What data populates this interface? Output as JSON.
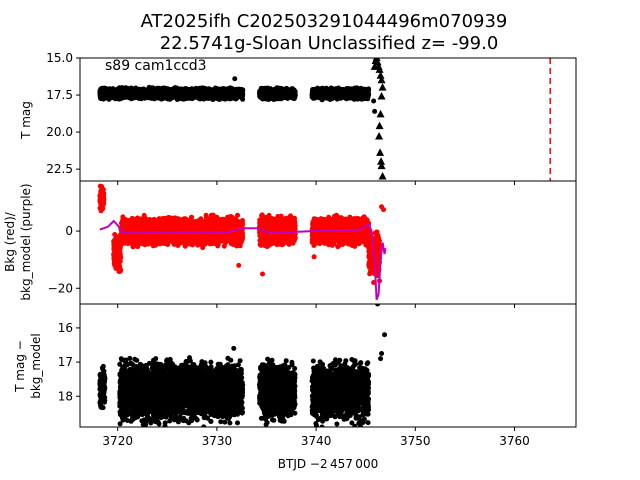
{
  "figure": {
    "title_line1": "AT2025ifh  C202503291044496m070939",
    "title_line2": "22.5741g-Sloan Unclassified z= -99.0",
    "annotation": "s89 cam1ccd3"
  },
  "chart_data": [
    {
      "type": "scatter",
      "panel": "top",
      "ylabel": "T mag",
      "xlim": [
        3716.2,
        3766.2
      ],
      "ylim": [
        23.3,
        15.0
      ],
      "y_inverted": true,
      "yticks": [
        15.0,
        17.5,
        20.0,
        22.5
      ],
      "ytick_labels": [
        "15.0",
        "17.5",
        "20.0",
        "22.5"
      ],
      "grid": false,
      "series": [
        {
          "marker": "circle",
          "color": "#000000",
          "segments": [
            {
              "x_start": 3718.2,
              "x_end": 3732.6,
              "y_center": 17.4,
              "y_spread": 0.45
            },
            {
              "x_start": 3734.3,
              "x_end": 3737.9,
              "y_center": 17.4,
              "y_spread": 0.45
            },
            {
              "x_start": 3739.6,
              "x_end": 3745.3,
              "y_center": 17.4,
              "y_spread": 0.45
            }
          ],
          "points": [
            {
              "x": 3731.8,
              "y": 16.4
            },
            {
              "x": 3745.8,
              "y": 17.9
            },
            {
              "x": 3745.9,
              "y": 18.6
            }
          ]
        },
        {
          "marker": "triangle",
          "color": "#000000",
          "points": [
            {
              "x": 3745.9,
              "y": 15.6
            },
            {
              "x": 3746.0,
              "y": 15.2
            },
            {
              "x": 3746.1,
              "y": 15.0
            },
            {
              "x": 3746.2,
              "y": 15.3
            },
            {
              "x": 3746.3,
              "y": 15.6
            },
            {
              "x": 3746.4,
              "y": 15.8
            },
            {
              "x": 3746.5,
              "y": 16.2
            },
            {
              "x": 3746.6,
              "y": 16.5
            },
            {
              "x": 3746.7,
              "y": 17.0
            },
            {
              "x": 3746.6,
              "y": 17.6
            },
            {
              "x": 3746.5,
              "y": 18.8
            },
            {
              "x": 3746.4,
              "y": 19.6
            },
            {
              "x": 3746.35,
              "y": 20.3
            },
            {
              "x": 3746.45,
              "y": 21.4
            },
            {
              "x": 3746.55,
              "y": 22.0
            },
            {
              "x": 3746.6,
              "y": 22.3
            },
            {
              "x": 3746.7,
              "y": 23.0
            }
          ]
        }
      ],
      "vline": {
        "x": 3763.6,
        "color": "#ff0000",
        "style": "dashed"
      }
    },
    {
      "type": "scatter",
      "panel": "middle",
      "ylabel_line1": "Bkg (red)/",
      "ylabel_line2": "bkg_model (purple)",
      "xlim": [
        3716.2,
        3766.2
      ],
      "ylim": [
        -25.5,
        17.5
      ],
      "yticks": [
        0,
        -20
      ],
      "ytick_labels": [
        "0",
        "−20"
      ],
      "grid": false,
      "series": [
        {
          "name": "Bkg",
          "color": "#ff0000",
          "segments": [
            {
              "x_start": 3718.2,
              "x_end": 3718.6,
              "y_center": 11.5,
              "y_spread": 5.0
            },
            {
              "x_start": 3719.6,
              "x_end": 3720.3,
              "y_center": -8.0,
              "y_spread": 8.0
            },
            {
              "x_start": 3720.3,
              "x_end": 3732.6,
              "y_center": 0.0,
              "y_spread": 6.0
            },
            {
              "x_start": 3734.3,
              "x_end": 3737.9,
              "y_center": 0.0,
              "y_spread": 6.0
            },
            {
              "x_start": 3739.6,
              "x_end": 3745.3,
              "y_center": 0.0,
              "y_spread": 6.0
            },
            {
              "x_start": 3745.3,
              "x_end": 3746.4,
              "y_center": -8.0,
              "y_spread": 10.0
            }
          ],
          "points": [
            {
              "x": 3732.2,
              "y": -12.0
            },
            {
              "x": 3734.6,
              "y": -15.0
            },
            {
              "x": 3739.8,
              "y": -9.0
            },
            {
              "x": 3745.8,
              "y": -18.0
            },
            {
              "x": 3746.6,
              "y": 8.5
            },
            {
              "x": 3746.8,
              "y": 7.5
            }
          ]
        },
        {
          "name": "bkg_model",
          "color": "#bf00bf",
          "x": [
            3718.2,
            3719.0,
            3719.6,
            3720.0,
            3720.5,
            3722.0,
            3725.0,
            3728.0,
            3731.0,
            3732.6,
            3734.3,
            3735.0,
            3737.9,
            3739.6,
            3742.0,
            3744.5,
            3745.3,
            3745.6,
            3745.9,
            3746.1,
            3746.3,
            3746.5,
            3746.7,
            3746.9,
            3747.0
          ],
          "y": [
            0.5,
            1.5,
            3.5,
            2.0,
            -0.5,
            -0.8,
            -0.5,
            -0.3,
            -0.5,
            1.0,
            1.0,
            -0.5,
            -0.3,
            0.0,
            0.2,
            0.5,
            2.5,
            0.0,
            -10.0,
            -24.0,
            -22.0,
            -10.0,
            -4.0,
            -8.0,
            -6.0
          ]
        }
      ]
    },
    {
      "type": "scatter",
      "panel": "bottom",
      "ylabel_line1": "T mag −",
      "ylabel_line2": "bkg_model",
      "xlabel": "BTJD −2 457 000",
      "xlim": [
        3716.2,
        3766.2
      ],
      "xticks": [
        3720,
        3730,
        3740,
        3750,
        3760
      ],
      "xtick_labels": [
        "3720",
        "3730",
        "3740",
        "3750",
        "3760"
      ],
      "ylim": [
        18.9,
        15.3
      ],
      "y_inverted": true,
      "yticks": [
        16,
        17,
        18
      ],
      "ytick_labels": [
        "16",
        "17",
        "18"
      ],
      "grid": false,
      "series": [
        {
          "color": "#000000",
          "segments": [
            {
              "x_start": 3718.2,
              "x_end": 3718.7,
              "y_center": 17.8,
              "y_spread": 0.8
            },
            {
              "x_start": 3720.2,
              "x_end": 3732.6,
              "y_center": 17.85,
              "y_spread": 1.1
            },
            {
              "x_start": 3734.3,
              "x_end": 3737.9,
              "y_center": 17.85,
              "y_spread": 1.1
            },
            {
              "x_start": 3739.6,
              "x_end": 3745.3,
              "y_center": 17.85,
              "y_spread": 1.1
            }
          ],
          "points": [
            {
              "x": 3731.7,
              "y": 16.6
            },
            {
              "x": 3746.2,
              "y": 15.3
            },
            {
              "x": 3746.5,
              "y": 16.9
            },
            {
              "x": 3746.6,
              "y": 16.75
            },
            {
              "x": 3746.9,
              "y": 16.2
            }
          ]
        }
      ]
    }
  ]
}
